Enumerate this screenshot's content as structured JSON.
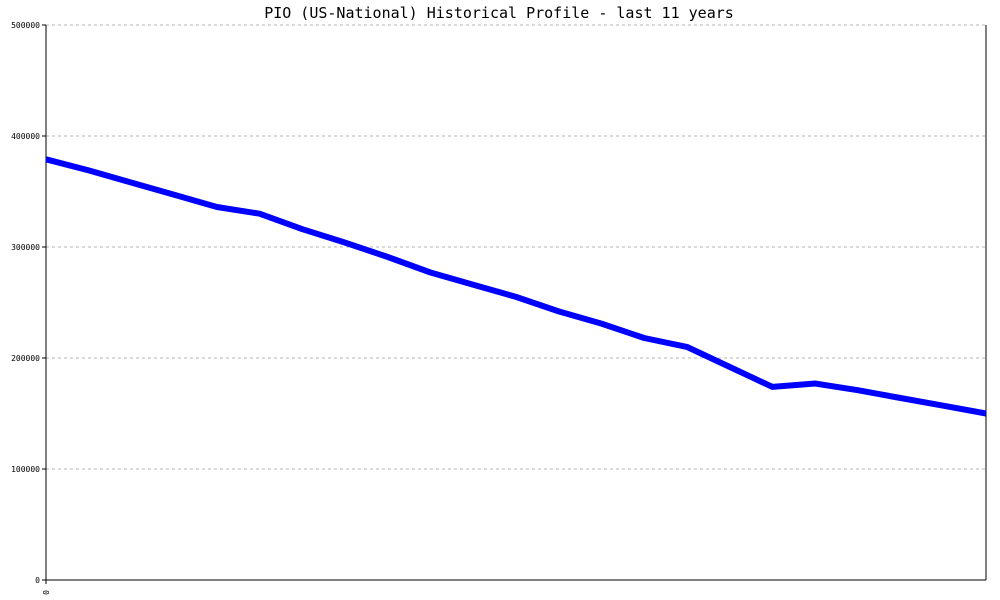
{
  "chart_data": {
    "type": "line",
    "title": "PIO (US-National) Historical Profile - last 11 years",
    "xlabel": "",
    "ylabel": "",
    "ylim": [
      0,
      500000
    ],
    "yticks": [
      "0",
      "100000",
      "200000",
      "300000",
      "400000",
      "500000"
    ],
    "xticks": [
      "0"
    ],
    "grid": true,
    "legend": "none",
    "series_color": "#0000ff",
    "x": [
      0,
      1,
      2,
      3,
      4,
      5,
      6,
      7,
      8,
      9,
      10,
      11,
      12,
      13,
      14,
      15,
      16,
      17,
      18,
      19,
      20,
      21,
      22
    ],
    "values": [
      379000,
      369000,
      358000,
      347000,
      336000,
      330000,
      316000,
      304000,
      291000,
      277000,
      266000,
      255000,
      242000,
      231000,
      218000,
      210000,
      192000,
      174000,
      177000,
      171000,
      164000,
      157000,
      150000
    ]
  }
}
